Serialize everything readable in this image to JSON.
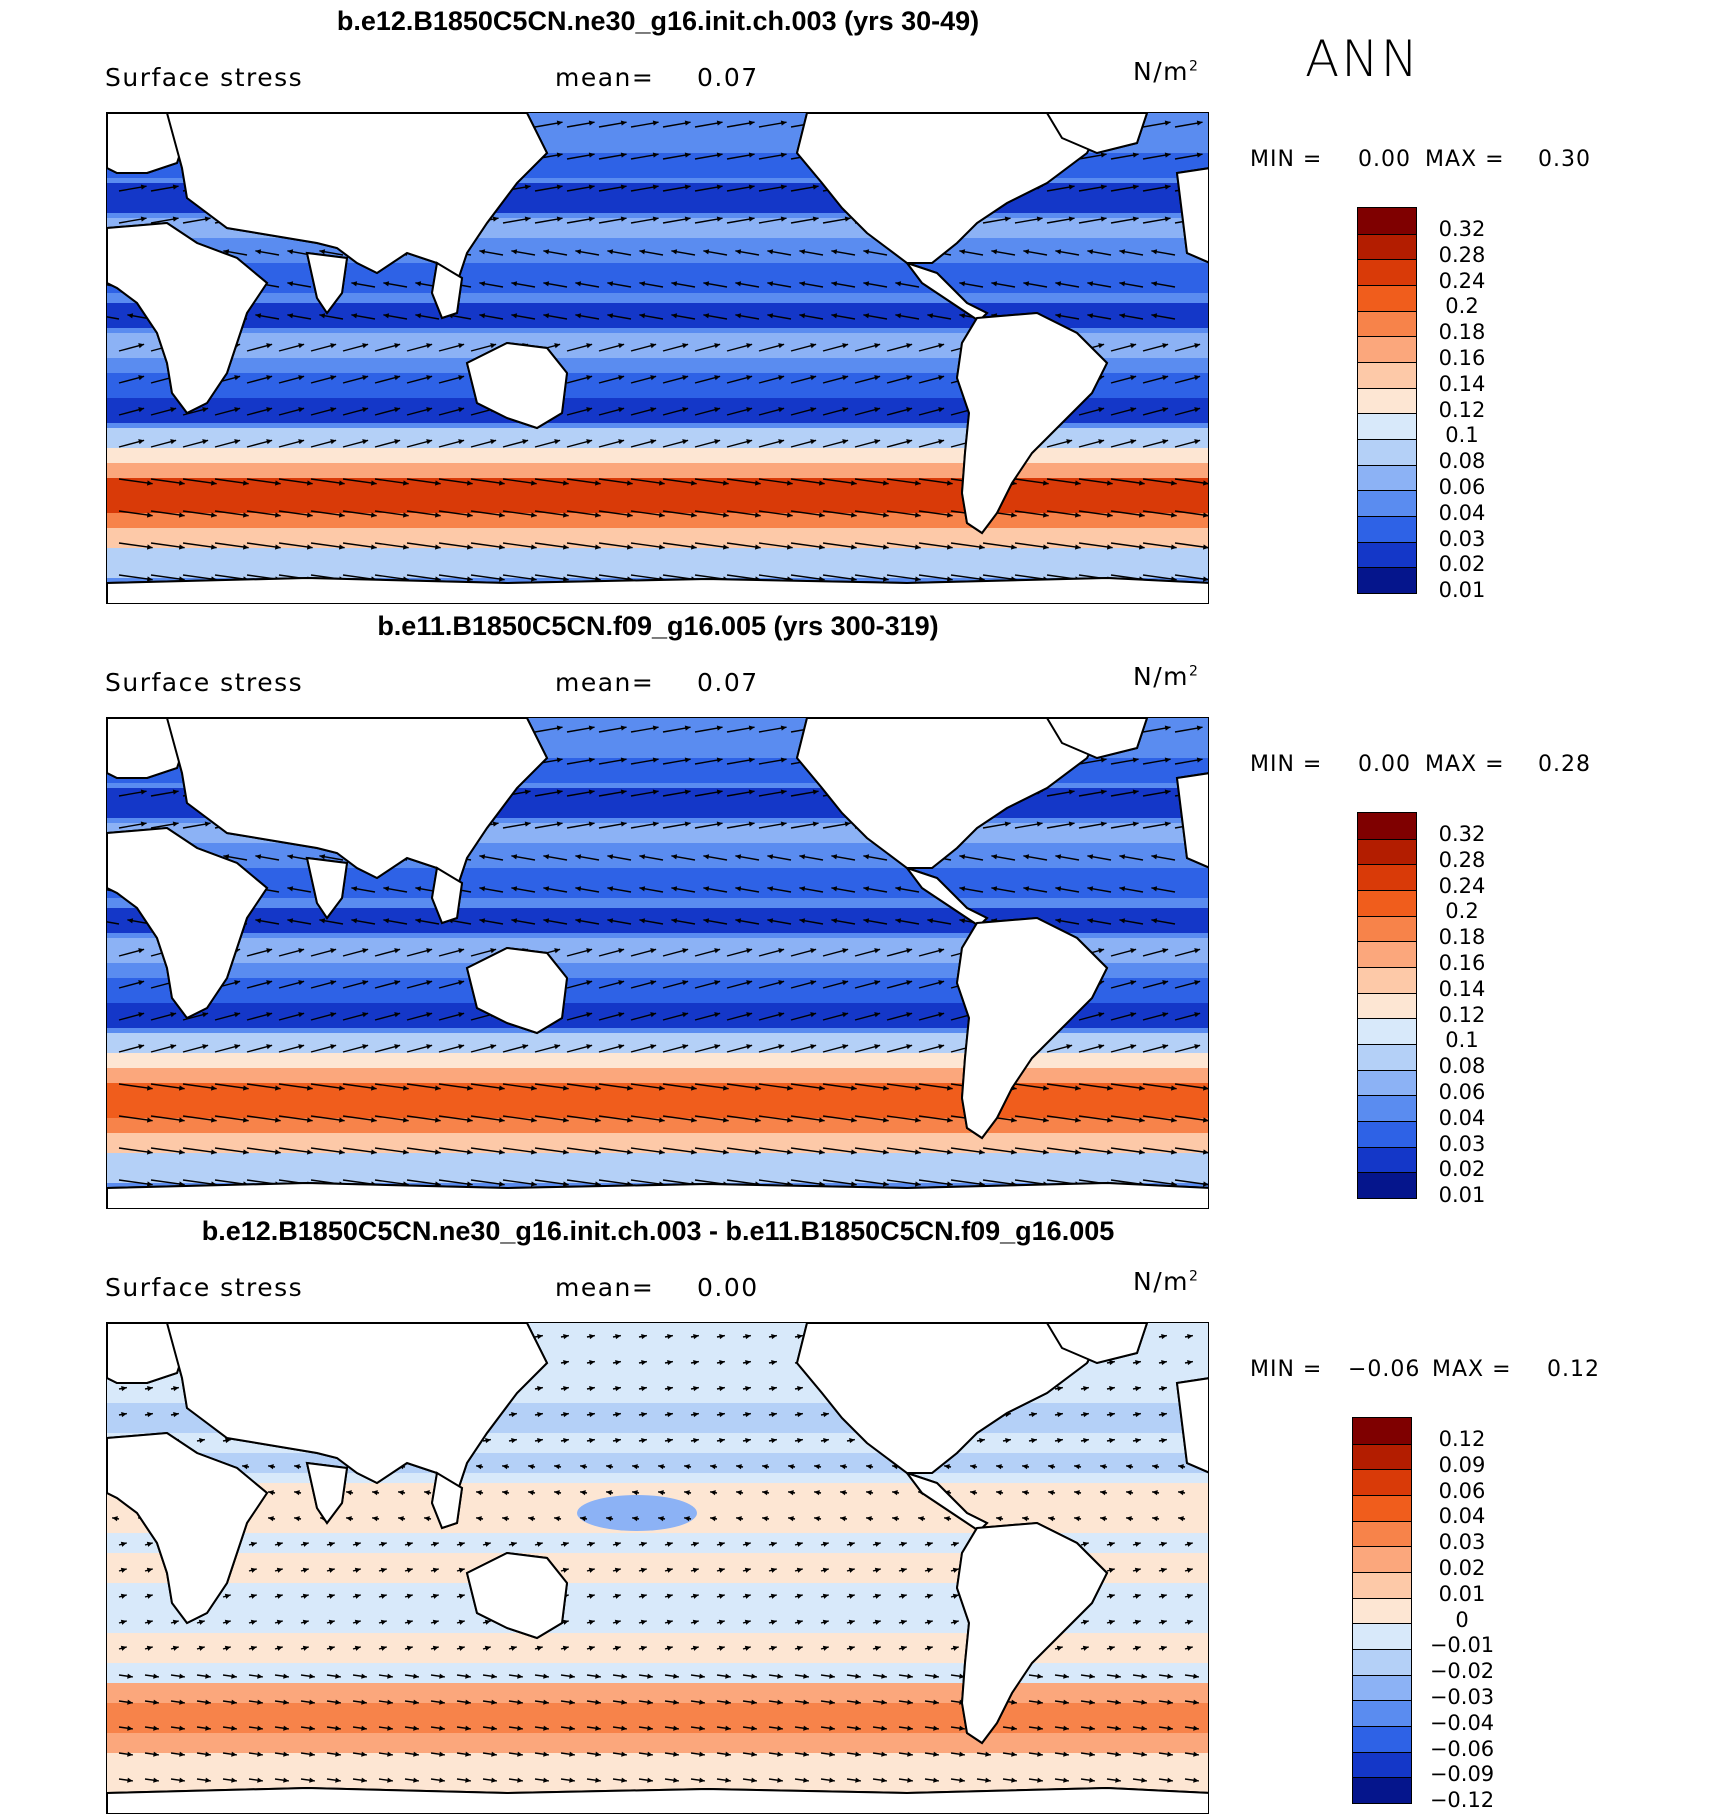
{
  "season": "ANN",
  "panels": [
    {
      "title": "b.e12.B1850C5CN.ne30_g16.init.ch.003 (yrs 30-49)",
      "variable": "Surface stress",
      "mean_label": "mean=",
      "mean_value": "0.07",
      "units": "N/m",
      "units_sup": "2",
      "min_label": "MIN =",
      "min_value": "0.00",
      "max_label": "MAX =",
      "max_value": "0.30",
      "colorbar_labels": [
        "0.32",
        "0.28",
        "0.24",
        "0.2",
        "0.18",
        "0.16",
        "0.14",
        "0.12",
        "0.1",
        "0.08",
        "0.06",
        "0.04",
        "0.03",
        "0.02",
        "0.01"
      ],
      "colorbar_colors": [
        "#7f0000",
        "#b31d00",
        "#d93a08",
        "#f05d1c",
        "#f7834a",
        "#fba77c",
        "#fdc9a8",
        "#fde6d3",
        "#d8e9fa",
        "#b4d0f7",
        "#8cb2f5",
        "#5a8cf0",
        "#2e62e6",
        "#1437c8",
        "#05158c"
      ]
    },
    {
      "title": "b.e11.B1850C5CN.f09_g16.005 (yrs 300-319)",
      "variable": "Surface stress",
      "mean_label": "mean=",
      "mean_value": "0.07",
      "units": "N/m",
      "units_sup": "2",
      "min_label": "MIN =",
      "min_value": "0.00",
      "max_label": "MAX =",
      "max_value": "0.28",
      "colorbar_labels": [
        "0.32",
        "0.28",
        "0.24",
        "0.2",
        "0.18",
        "0.16",
        "0.14",
        "0.12",
        "0.1",
        "0.08",
        "0.06",
        "0.04",
        "0.03",
        "0.02",
        "0.01"
      ],
      "colorbar_colors": [
        "#7f0000",
        "#b31d00",
        "#d93a08",
        "#f05d1c",
        "#f7834a",
        "#fba77c",
        "#fdc9a8",
        "#fde6d3",
        "#d8e9fa",
        "#b4d0f7",
        "#8cb2f5",
        "#5a8cf0",
        "#2e62e6",
        "#1437c8",
        "#05158c"
      ]
    },
    {
      "title": "b.e12.B1850C5CN.ne30_g16.init.ch.003 - b.e11.B1850C5CN.f09_g16.005",
      "variable": "Surface stress",
      "mean_label": "mean=",
      "mean_value": "0.00",
      "units": "N/m",
      "units_sup": "2",
      "min_label": "MIN =",
      "min_value": "−0.06",
      "max_label": "MAX =",
      "max_value": "0.12",
      "colorbar_labels": [
        "0.12",
        "0.09",
        "0.06",
        "0.04",
        "0.03",
        "0.02",
        "0.01",
        "0",
        "−0.01",
        "−0.02",
        "−0.03",
        "−0.04",
        "−0.06",
        "−0.09",
        "−0.12"
      ],
      "colorbar_colors": [
        "#7f0000",
        "#b31d00",
        "#d93a08",
        "#f05d1c",
        "#f7834a",
        "#fba77c",
        "#fdc9a8",
        "#fde6d3",
        "#d8e9fa",
        "#b4d0f7",
        "#8cb2f5",
        "#5a8cf0",
        "#2e62e6",
        "#1437c8",
        "#05158c"
      ]
    }
  ]
}
